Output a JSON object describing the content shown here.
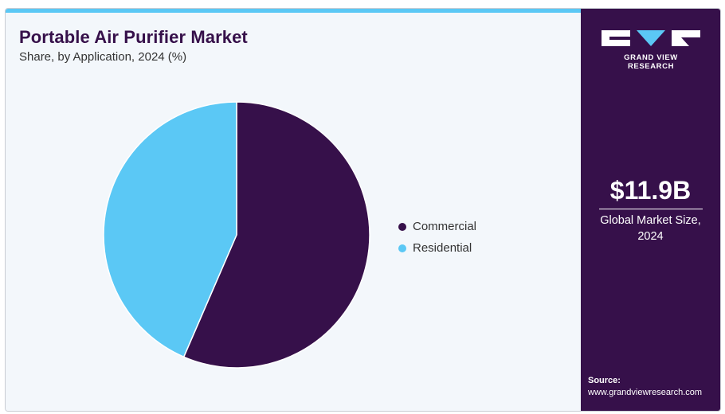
{
  "header": {
    "title": "Portable Air Purifier Market",
    "subtitle": "Share, by Application, 2024 (%)"
  },
  "brand": {
    "name": "GRAND VIEW RESEARCH",
    "accent_color": "#5bc8f5",
    "panel_color": "#36104a"
  },
  "stat": {
    "value": "$11.9B",
    "label": "Global Market Size, 2024"
  },
  "source": {
    "label": "Source:",
    "url": "www.grandviewresearch.com"
  },
  "chart_data": {
    "type": "pie",
    "title": "Portable Air Purifier Market",
    "subtitle": "Share, by Application, 2024 (%)",
    "categories": [
      "Commercial",
      "Residential"
    ],
    "values": [
      56.5,
      43.5
    ],
    "colors": [
      "#36104a",
      "#5bc8f5"
    ],
    "start_angle": "12 o'clock, clockwise",
    "legend_position": "right",
    "legend": [
      "Commercial",
      "Residential"
    ]
  }
}
